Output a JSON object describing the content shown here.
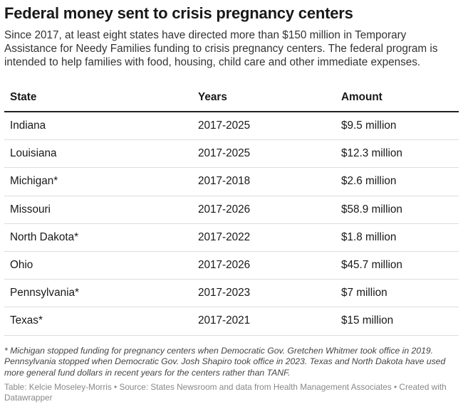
{
  "header": {
    "title": "Federal money sent to crisis pregnancy centers",
    "description": "Since 2017, at least eight states have directed more than $150 million in Temporary Assistance for Needy Families funding to crisis pregnancy centers. The federal program is intended to help families with food, housing, child care and other immediate expenses."
  },
  "table": {
    "columns": [
      "State",
      "Years",
      "Amount"
    ],
    "rows": [
      [
        "Indiana",
        "2017-2025",
        "$9.5 million"
      ],
      [
        "Louisiana",
        "2017-2025",
        "$12.3 million"
      ],
      [
        "Michigan*",
        "2017-2018",
        "$2.6 million"
      ],
      [
        "Missouri",
        "2017-2026",
        "$58.9 million"
      ],
      [
        "North Dakota*",
        "2017-2022",
        "$1.8 million"
      ],
      [
        "Ohio",
        "2017-2026",
        "$45.7 million"
      ],
      [
        "Pennsylvania*",
        "2017-2023",
        "$7 million"
      ],
      [
        "Texas*",
        "2017-2021",
        "$15 million"
      ]
    ]
  },
  "footer": {
    "note": "* Michigan stopped funding for pregnancy centers when Democratic Gov. Gretchen Whitmer took office in 2019. Pennsylvania stopped when Democratic Gov. Josh Shapiro took office in 2023. Texas and North Dakota have used more general fund dollars in recent years for the centers rather than TANF.",
    "source": "Table: Kelcie Moseley-Morris • Source: States Newsroom and data from Health Management Associates • Created with Datawrapper"
  }
}
